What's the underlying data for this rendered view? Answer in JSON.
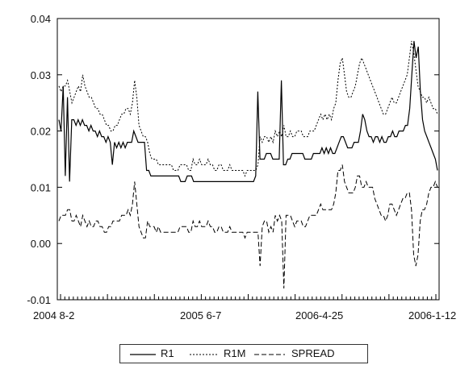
{
  "chart_data": {
    "type": "line",
    "ylim": [
      -0.01,
      0.04
    ],
    "y_ticks": [
      "0.04",
      "0.03",
      "0.02",
      "0.01",
      "0.00",
      "-0.01"
    ],
    "x_tick_labels": [
      "2004 8-2",
      "2005 6-7",
      "2006-4-25",
      "2006-1-12"
    ],
    "grid": false,
    "legend_position": "bottom-center",
    "series": [
      {
        "name": "R1",
        "style": "solid",
        "values": [
          0.022,
          0.02,
          0.028,
          0.012,
          0.026,
          0.011,
          0.022,
          0.022,
          0.021,
          0.022,
          0.021,
          0.022,
          0.021,
          0.021,
          0.02,
          0.021,
          0.02,
          0.02,
          0.019,
          0.02,
          0.019,
          0.019,
          0.018,
          0.019,
          0.018,
          0.014,
          0.018,
          0.017,
          0.018,
          0.017,
          0.018,
          0.017,
          0.018,
          0.018,
          0.018,
          0.02,
          0.019,
          0.018,
          0.018,
          0.018,
          0.018,
          0.013,
          0.013,
          0.012,
          0.012,
          0.012,
          0.012,
          0.012,
          0.012,
          0.012,
          0.012,
          0.012,
          0.012,
          0.012,
          0.012,
          0.012,
          0.012,
          0.011,
          0.011,
          0.011,
          0.012,
          0.012,
          0.012,
          0.011,
          0.011,
          0.011,
          0.011,
          0.011,
          0.011,
          0.011,
          0.011,
          0.011,
          0.011,
          0.011,
          0.011,
          0.011,
          0.011,
          0.011,
          0.011,
          0.011,
          0.011,
          0.011,
          0.011,
          0.011,
          0.011,
          0.011,
          0.011,
          0.011,
          0.011,
          0.011,
          0.011,
          0.011,
          0.012,
          0.027,
          0.015,
          0.015,
          0.015,
          0.016,
          0.016,
          0.016,
          0.015,
          0.015,
          0.015,
          0.015,
          0.029,
          0.014,
          0.014,
          0.015,
          0.015,
          0.016,
          0.016,
          0.016,
          0.016,
          0.016,
          0.016,
          0.015,
          0.015,
          0.015,
          0.015,
          0.016,
          0.016,
          0.016,
          0.016,
          0.017,
          0.016,
          0.017,
          0.016,
          0.017,
          0.016,
          0.016,
          0.017,
          0.018,
          0.019,
          0.019,
          0.018,
          0.017,
          0.017,
          0.017,
          0.018,
          0.018,
          0.018,
          0.02,
          0.023,
          0.022,
          0.02,
          0.019,
          0.019,
          0.018,
          0.019,
          0.019,
          0.018,
          0.019,
          0.018,
          0.018,
          0.019,
          0.019,
          0.02,
          0.019,
          0.019,
          0.02,
          0.02,
          0.02,
          0.021,
          0.021,
          0.024,
          0.03,
          0.036,
          0.033,
          0.035,
          0.027,
          0.022,
          0.02,
          0.019,
          0.018,
          0.017,
          0.016,
          0.015,
          0.013
        ]
      },
      {
        "name": "R1M",
        "style": "dotted",
        "values": [
          0.028,
          0.027,
          0.028,
          0.028,
          0.029,
          0.027,
          0.025,
          0.026,
          0.027,
          0.028,
          0.027,
          0.03,
          0.028,
          0.027,
          0.026,
          0.026,
          0.025,
          0.024,
          0.024,
          0.023,
          0.023,
          0.022,
          0.021,
          0.021,
          0.02,
          0.02,
          0.021,
          0.021,
          0.022,
          0.023,
          0.023,
          0.024,
          0.024,
          0.023,
          0.025,
          0.029,
          0.026,
          0.021,
          0.02,
          0.019,
          0.019,
          0.018,
          0.016,
          0.015,
          0.015,
          0.015,
          0.014,
          0.014,
          0.014,
          0.014,
          0.014,
          0.014,
          0.014,
          0.013,
          0.013,
          0.013,
          0.014,
          0.014,
          0.014,
          0.014,
          0.013,
          0.013,
          0.015,
          0.014,
          0.014,
          0.015,
          0.014,
          0.014,
          0.014,
          0.015,
          0.014,
          0.014,
          0.013,
          0.013,
          0.014,
          0.014,
          0.013,
          0.013,
          0.013,
          0.014,
          0.013,
          0.013,
          0.013,
          0.013,
          0.013,
          0.013,
          0.012,
          0.013,
          0.013,
          0.013,
          0.013,
          0.013,
          0.014,
          0.019,
          0.018,
          0.019,
          0.019,
          0.018,
          0.019,
          0.018,
          0.02,
          0.019,
          0.02,
          0.019,
          0.021,
          0.019,
          0.019,
          0.02,
          0.019,
          0.019,
          0.02,
          0.02,
          0.02,
          0.019,
          0.019,
          0.019,
          0.02,
          0.02,
          0.02,
          0.021,
          0.022,
          0.023,
          0.022,
          0.023,
          0.022,
          0.023,
          0.022,
          0.024,
          0.025,
          0.029,
          0.032,
          0.033,
          0.03,
          0.027,
          0.026,
          0.026,
          0.027,
          0.028,
          0.03,
          0.032,
          0.033,
          0.032,
          0.031,
          0.03,
          0.029,
          0.028,
          0.027,
          0.026,
          0.025,
          0.024,
          0.023,
          0.023,
          0.024,
          0.025,
          0.026,
          0.025,
          0.025,
          0.026,
          0.027,
          0.028,
          0.029,
          0.03,
          0.033,
          0.036,
          0.034,
          0.031,
          0.028,
          0.027,
          0.026,
          0.026,
          0.025,
          0.026,
          0.025,
          0.024,
          0.024,
          0.023
        ]
      },
      {
        "name": "SPREAD",
        "style": "dashed",
        "values": [
          0.004,
          0.005,
          0.005,
          0.005,
          0.006,
          0.006,
          0.004,
          0.004,
          0.005,
          0.004,
          0.003,
          0.005,
          0.004,
          0.003,
          0.004,
          0.003,
          0.003,
          0.004,
          0.004,
          0.003,
          0.003,
          0.002,
          0.002,
          0.003,
          0.003,
          0.004,
          0.004,
          0.004,
          0.004,
          0.005,
          0.005,
          0.005,
          0.006,
          0.005,
          0.007,
          0.011,
          0.007,
          0.003,
          0.002,
          0.001,
          0.001,
          0.004,
          0.003,
          0.003,
          0.003,
          0.002,
          0.003,
          0.002,
          0.002,
          0.002,
          0.002,
          0.002,
          0.002,
          0.002,
          0.002,
          0.002,
          0.003,
          0.003,
          0.003,
          0.003,
          0.002,
          0.002,
          0.004,
          0.003,
          0.003,
          0.004,
          0.003,
          0.003,
          0.003,
          0.004,
          0.003,
          0.003,
          0.002,
          0.002,
          0.003,
          0.003,
          0.002,
          0.002,
          0.002,
          0.003,
          0.002,
          0.002,
          0.002,
          0.002,
          0.002,
          0.002,
          0.001,
          0.002,
          0.002,
          0.002,
          0.002,
          0.002,
          0.002,
          -0.004,
          0.003,
          0.004,
          0.004,
          0.002,
          0.003,
          0.002,
          0.005,
          0.004,
          0.005,
          0.004,
          -0.008,
          0.005,
          0.005,
          0.005,
          0.004,
          0.003,
          0.004,
          0.004,
          0.004,
          0.003,
          0.003,
          0.004,
          0.005,
          0.005,
          0.005,
          0.005,
          0.006,
          0.007,
          0.006,
          0.006,
          0.006,
          0.006,
          0.006,
          0.007,
          0.009,
          0.013,
          0.013,
          0.014,
          0.011,
          0.01,
          0.009,
          0.009,
          0.009,
          0.01,
          0.012,
          0.012,
          0.01,
          0.01,
          0.011,
          0.01,
          0.01,
          0.01,
          0.008,
          0.007,
          0.006,
          0.005,
          0.005,
          0.004,
          0.005,
          0.007,
          0.007,
          0.006,
          0.005,
          0.006,
          0.007,
          0.008,
          0.008,
          0.009,
          0.009,
          0.006,
          -0.002,
          -0.004,
          -0.002,
          0.004,
          0.006,
          0.006,
          0.007,
          0.009,
          0.01,
          0.01,
          0.011,
          0.01
        ]
      }
    ]
  }
}
